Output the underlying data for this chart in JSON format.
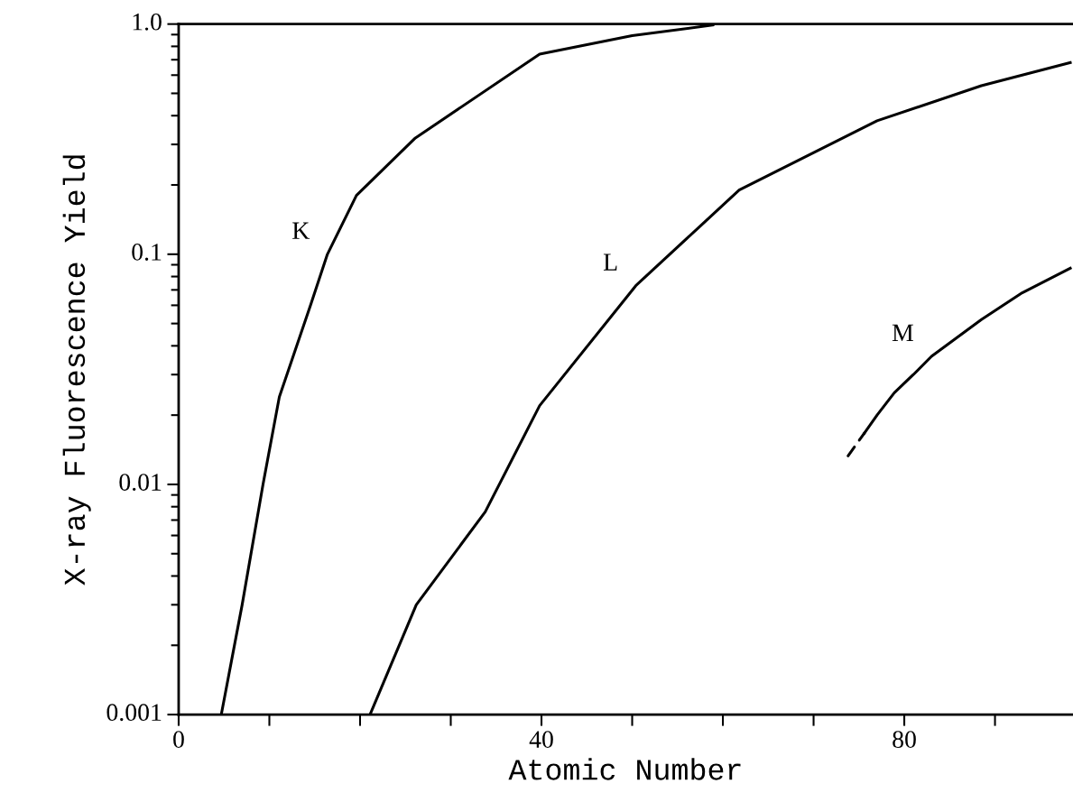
{
  "chart_data": {
    "type": "line",
    "xlabel": "Atomic Number",
    "ylabel": "X-ray Fluorescence Yield",
    "log": "y",
    "grid": false,
    "marker": "none",
    "legend": false,
    "xlim": [
      0,
      98.6
    ],
    "ylim": [
      0.001,
      1.0
    ],
    "xticks": [
      0,
      {
        "value": 10,
        "label": null
      },
      {
        "value": 20,
        "label": null
      },
      {
        "value": 30,
        "label": null
      },
      40,
      {
        "value": 50,
        "label": null
      },
      {
        "value": 60,
        "label": null
      },
      {
        "value": 70,
        "label": null
      },
      80,
      {
        "value": 90,
        "label": null
      }
    ],
    "yticks": [
      0.001,
      0.01,
      0.1,
      {
        "value": 1.0,
        "label": "1.0"
      }
    ],
    "series": [
      {
        "name": "K",
        "color": "#000000",
        "line_style": "solid",
        "x": [
          4.7,
          7.0,
          9.3,
          11.1,
          14.6,
          16.4,
          19.6,
          26.1,
          39.8,
          50,
          58.9
        ],
        "values": [
          0.001,
          0.003,
          0.01,
          0.024,
          0.061,
          0.1,
          0.18,
          0.32,
          0.74,
          0.89,
          0.99
        ]
      },
      {
        "name": "L",
        "color": "#000000",
        "line_style": "solid",
        "x": [
          21.1,
          26.2,
          33.8,
          39.8,
          50.4,
          61.8,
          77,
          88.5,
          98.3
        ],
        "values": [
          0.001,
          0.003,
          0.0076,
          0.022,
          0.073,
          0.19,
          0.38,
          0.54,
          0.68
        ]
      },
      {
        "name": "M",
        "color": "#000000",
        "line_style": "solid",
        "x": [
          75.6,
          77,
          78.9,
          81,
          83,
          88.5,
          93,
          98.3
        ],
        "values": [
          0.0167,
          0.02,
          0.025,
          0.03,
          0.036,
          0.052,
          0.068,
          0.087
        ]
      },
      {
        "color": "#000000",
        "line_style": "dashed",
        "x": [
          73.8,
          75.6
        ],
        "values": [
          0.0133,
          0.0167
        ]
      }
    ]
  }
}
